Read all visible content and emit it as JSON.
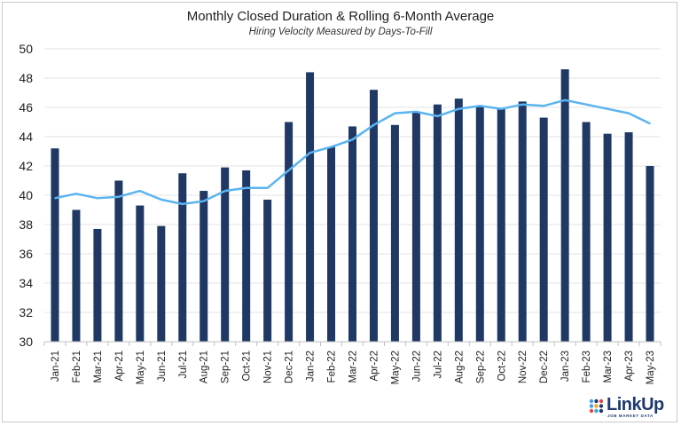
{
  "chart_data": {
    "type": "bar",
    "title": "Monthly Closed Duration & Rolling 6-Month Average",
    "subtitle": "Hiring Velocity Measured by Days-To-Fill",
    "xlabel": "",
    "ylabel": "",
    "ylim": [
      30,
      50
    ],
    "yticks": [
      30,
      32,
      34,
      36,
      38,
      40,
      42,
      44,
      46,
      48,
      50
    ],
    "grid": true,
    "legend": "none",
    "categories": [
      "Jan-21",
      "Feb-21",
      "Mar-21",
      "Apr-21",
      "May-21",
      "Jun-21",
      "Jul-21",
      "Aug-21",
      "Sep-21",
      "Oct-21",
      "Nov-21",
      "Dec-21",
      "Jan-22",
      "Feb-22",
      "Mar-22",
      "Apr-22",
      "May-22",
      "Jun-22",
      "Jul-22",
      "Aug-22",
      "Sep-22",
      "Oct-22",
      "Nov-22",
      "Dec-22",
      "Jan-23",
      "Feb-23",
      "Mar-23",
      "Apr-23",
      "May-23"
    ],
    "series": [
      {
        "type": "bar",
        "color": "#1f3864",
        "values": [
          43.2,
          39.0,
          37.7,
          41.0,
          39.3,
          37.9,
          41.5,
          40.3,
          41.9,
          41.7,
          39.7,
          45.0,
          48.4,
          43.3,
          44.7,
          47.2,
          44.8,
          45.7,
          46.2,
          46.6,
          46.1,
          45.9,
          46.4,
          45.3,
          48.6,
          45.0,
          44.2,
          44.3,
          42.0
        ]
      },
      {
        "type": "line",
        "color": "#5ab4f0",
        "values": [
          39.8,
          40.1,
          39.8,
          39.9,
          40.3,
          39.7,
          39.4,
          39.6,
          40.3,
          40.5,
          40.5,
          41.7,
          42.9,
          43.3,
          43.8,
          44.8,
          45.6,
          45.7,
          45.4,
          45.9,
          46.1,
          45.9,
          46.2,
          46.1,
          46.5,
          46.2,
          45.9,
          45.6,
          44.9
        ]
      }
    ]
  },
  "logo": {
    "name": "LinkUp",
    "tagline": "JOB MARKET DATA",
    "dot_colors": [
      "#3aa0e8",
      "#1e3a6e",
      "#e8433a",
      "#3aa0e8",
      "#f5a623",
      "#1e3a6e",
      "#e8433a",
      "#3aa0e8",
      "#1e3a6e"
    ]
  }
}
